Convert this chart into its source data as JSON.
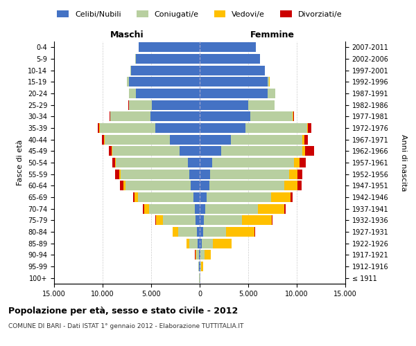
{
  "age_groups": [
    "100+",
    "95-99",
    "90-94",
    "85-89",
    "80-84",
    "75-79",
    "70-74",
    "65-69",
    "60-64",
    "55-59",
    "50-54",
    "45-49",
    "40-44",
    "35-39",
    "30-34",
    "25-29",
    "20-24",
    "15-19",
    "10-14",
    "5-9",
    "0-4"
  ],
  "birth_years": [
    "≤ 1911",
    "1912-1916",
    "1917-1921",
    "1922-1926",
    "1927-1931",
    "1932-1936",
    "1937-1941",
    "1942-1946",
    "1947-1951",
    "1952-1956",
    "1957-1961",
    "1962-1966",
    "1967-1971",
    "1972-1976",
    "1977-1981",
    "1982-1986",
    "1987-1991",
    "1992-1996",
    "1997-2001",
    "2002-2006",
    "2007-2011"
  ],
  "male_celibi": [
    30,
    55,
    90,
    200,
    310,
    420,
    520,
    640,
    950,
    1050,
    1250,
    2100,
    3100,
    4600,
    5100,
    4900,
    6600,
    7300,
    7100,
    6600,
    6300
  ],
  "male_coniugati": [
    15,
    75,
    280,
    850,
    1900,
    3400,
    4700,
    5700,
    6700,
    7100,
    7400,
    6900,
    6700,
    5700,
    4100,
    2400,
    680,
    190,
    45,
    18,
    8
  ],
  "male_vedovi": [
    3,
    25,
    90,
    280,
    580,
    680,
    490,
    340,
    190,
    140,
    95,
    45,
    45,
    25,
    18,
    8,
    18,
    8,
    3,
    3,
    3
  ],
  "male_divorziati": [
    2,
    4,
    9,
    18,
    28,
    75,
    115,
    195,
    340,
    390,
    245,
    340,
    195,
    145,
    75,
    28,
    9,
    4,
    2,
    2,
    2
  ],
  "female_nubili": [
    28,
    58,
    95,
    240,
    340,
    440,
    590,
    690,
    990,
    1090,
    1280,
    2180,
    3180,
    4680,
    5180,
    4980,
    6980,
    6980,
    6680,
    6180,
    5780
  ],
  "female_coniugate": [
    18,
    95,
    380,
    1150,
    2400,
    3900,
    5400,
    6700,
    7700,
    8100,
    8400,
    8400,
    7400,
    6400,
    4400,
    2700,
    780,
    190,
    58,
    18,
    9
  ],
  "female_vedove": [
    28,
    190,
    680,
    1900,
    2900,
    3100,
    2700,
    1950,
    1350,
    880,
    580,
    290,
    190,
    95,
    45,
    18,
    28,
    9,
    3,
    3,
    3
  ],
  "female_divorziate": [
    2,
    4,
    9,
    28,
    48,
    95,
    145,
    240,
    440,
    490,
    680,
    880,
    340,
    290,
    95,
    45,
    13,
    4,
    2,
    2,
    2
  ],
  "colors_celibi": "#4472c4",
  "colors_coniugati": "#b8cfa0",
  "colors_vedovi": "#ffc000",
  "colors_divorziati": "#cc0000",
  "title": "Popolazione per età, sesso e stato civile - 2012",
  "subtitle": "COMUNE DI BARI - Dati ISTAT 1° gennaio 2012 - Elaborazione TUTTITALIA.IT",
  "xlim": 15000,
  "label_maschi": "Maschi",
  "label_femmine": "Femmine",
  "ylabel_left": "Fasce di età",
  "ylabel_right": "Anni di nascita",
  "legend_labels": [
    "Celibi/Nubili",
    "Coniugati/e",
    "Vedovi/e",
    "Divorziati/e"
  ],
  "background_color": "#ffffff",
  "grid_color": "#cccccc"
}
